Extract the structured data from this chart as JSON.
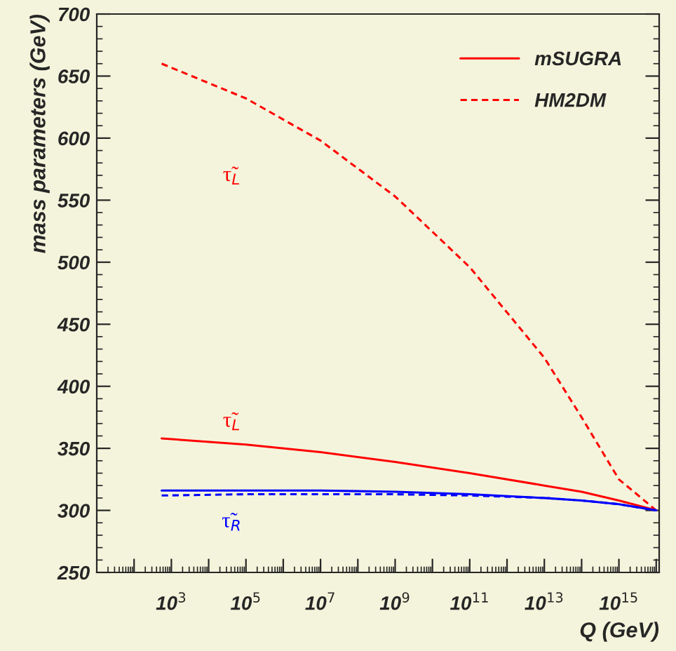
{
  "chart_data": {
    "type": "line",
    "xlabel": "Q (GeV)",
    "ylabel": "mass parameters (GeV)",
    "log": "x",
    "xlim": [
      10,
      1.2e+16
    ],
    "ylim": [
      250,
      700
    ],
    "xticks": [
      {
        "value": 100,
        "label": null
      },
      {
        "value": 1000,
        "label": "10$^{3}$"
      },
      {
        "value": 10000.0,
        "label": null
      },
      {
        "value": 100000.0,
        "label": "10$^{5}$"
      },
      {
        "value": 1000000.0,
        "label": null
      },
      {
        "value": 10000000.0,
        "label": "10$^{7}$"
      },
      {
        "value": 100000000.0,
        "label": null
      },
      {
        "value": 1000000000.0,
        "label": "10$^{9}$"
      },
      {
        "value": 10000000000.0,
        "label": null
      },
      {
        "value": 100000000000.0,
        "label": "10$^{11}$"
      },
      {
        "value": 1000000000000.0,
        "label": null
      },
      {
        "value": 10000000000000.0,
        "label": "10$^{13}$"
      },
      {
        "value": 100000000000000.0,
        "label": null
      },
      {
        "value": 1000000000000000.0,
        "label": "10$^{15}$"
      },
      {
        "value": 1e+16,
        "label": null
      }
    ],
    "yticks": [
      250,
      300,
      350,
      400,
      450,
      500,
      550,
      600,
      650,
      700
    ],
    "legend": "top right",
    "grid": false,
    "x": [
      550,
      100000.0,
      10000000.0,
      1000000000.0,
      100000000000.0,
      10000000000000.0,
      100000000000000.0,
      1000000000000000.0,
      1e+16
    ],
    "series": [
      {
        "name": "mSUGRA",
        "color": "#ff0000",
        "line_style": "solid",
        "values": [
          358,
          353,
          347,
          339,
          330,
          320,
          315,
          308,
          300
        ]
      },
      {
        "name": "HM2DM",
        "color": "#ff0000",
        "line_style": "dashed",
        "values": [
          660,
          632,
          598,
          553,
          496,
          423,
          375,
          325,
          300
        ]
      },
      {
        "color": "#0000ff",
        "line_style": "solid",
        "values": [
          316,
          316,
          316,
          315,
          313,
          310,
          308,
          305,
          300
        ]
      },
      {
        "color": "#0000ff",
        "line_style": "dashed",
        "values": [
          312,
          313,
          313,
          313,
          312,
          310,
          308,
          305,
          300
        ]
      }
    ],
    "annotations": [
      "τ̃$_{L}$",
      "τ̃$_{L}$",
      "τ̃$_{R}$"
    ]
  }
}
